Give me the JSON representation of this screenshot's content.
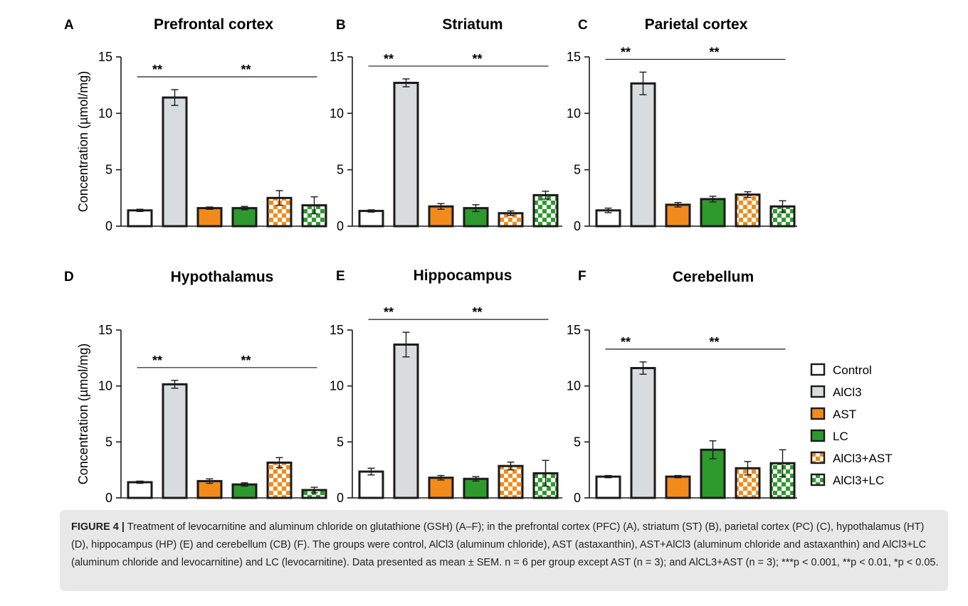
{
  "figure": {
    "y_axis_label": "Concentration (µmol/mg)",
    "y_ticks": [
      "0",
      "5",
      "10",
      "15"
    ],
    "significance": "**"
  },
  "legend": [
    {
      "label": "Control",
      "pattern": "white"
    },
    {
      "label": "AlCl3",
      "pattern": "grey"
    },
    {
      "label": "AST",
      "pattern": "orange"
    },
    {
      "label": "LC",
      "pattern": "green"
    },
    {
      "label": "AlCl3+AST",
      "pattern": "orange-check"
    },
    {
      "label": "AlCl3+LC",
      "pattern": "green-check"
    }
  ],
  "colors": {
    "control": "#ffffff",
    "alcl3": "#d9dcdc",
    "ast": "#f28a1c",
    "lc": "#2e9a2e",
    "axis": "#1a1a1a",
    "caption_bg": "#e8e8e8"
  },
  "chart_data": [
    {
      "type": "bar",
      "letter": "A",
      "title": "Prefrontal cortex",
      "categories": [
        "Control",
        "AlCl3",
        "AST",
        "LC",
        "AlCl3+AST",
        "AlCl3+LC"
      ],
      "values": [
        1.4,
        11.4,
        1.6,
        1.6,
        2.5,
        1.85
      ],
      "errors": [
        0.1,
        0.7,
        0.1,
        0.15,
        0.65,
        0.75
      ],
      "ylim": [
        0,
        15
      ],
      "ylabel": "Concentration (µmol/mg)",
      "yticks": [
        0,
        5,
        10,
        15
      ]
    },
    {
      "type": "bar",
      "letter": "B",
      "title": "Striatum",
      "categories": [
        "Control",
        "AlCl3",
        "AST",
        "LC",
        "AlCl3+AST",
        "AlCl3+LC"
      ],
      "values": [
        1.35,
        12.7,
        1.75,
        1.6,
        1.15,
        2.75
      ],
      "errors": [
        0.1,
        0.35,
        0.25,
        0.3,
        0.2,
        0.35
      ],
      "ylim": [
        0,
        15
      ],
      "yticks": [
        0,
        5,
        10,
        15
      ]
    },
    {
      "type": "bar",
      "letter": "C",
      "title": "Parietal cortex",
      "categories": [
        "Control",
        "AlCl3",
        "AST",
        "LC",
        "AlCl3+AST",
        "AlCl3+LC"
      ],
      "values": [
        1.4,
        12.65,
        1.9,
        2.4,
        2.8,
        1.75
      ],
      "errors": [
        0.2,
        1.0,
        0.2,
        0.25,
        0.25,
        0.5
      ],
      "ylim": [
        0,
        15
      ],
      "yticks": [
        0,
        5,
        10,
        15
      ]
    },
    {
      "type": "bar",
      "letter": "D",
      "title": "Hypothalamus",
      "categories": [
        "Control",
        "AlCl3",
        "AST",
        "LC",
        "AlCl3+AST",
        "AlCl3+LC"
      ],
      "values": [
        1.4,
        10.15,
        1.5,
        1.2,
        3.15,
        0.7
      ],
      "errors": [
        0.1,
        0.35,
        0.2,
        0.15,
        0.45,
        0.25
      ],
      "ylim": [
        0,
        15
      ],
      "ylabel": "Concentration (µmol/mg)",
      "yticks": [
        0,
        5,
        10,
        15
      ]
    },
    {
      "type": "bar",
      "letter": "E",
      "title": "Hippocampus",
      "categories": [
        "Control",
        "AlCl3",
        "AST",
        "LC",
        "AlCl3+AST",
        "AlCl3+LC"
      ],
      "values": [
        2.35,
        13.7,
        1.8,
        1.7,
        2.85,
        2.2
      ],
      "errors": [
        0.3,
        1.1,
        0.2,
        0.2,
        0.35,
        1.15
      ],
      "ylim": [
        0,
        15
      ],
      "yticks": [
        0,
        5,
        10,
        15
      ]
    },
    {
      "type": "bar",
      "letter": "F",
      "title": "Cerebellum",
      "categories": [
        "Control",
        "AlCl3",
        "AST",
        "LC",
        "AlCl3+AST",
        "AlCl3+LC"
      ],
      "values": [
        1.9,
        11.6,
        1.9,
        4.3,
        2.65,
        3.1
      ],
      "errors": [
        0.1,
        0.55,
        0.1,
        0.8,
        0.6,
        1.2
      ],
      "ylim": [
        0,
        15
      ],
      "yticks": [
        0,
        5,
        10,
        15
      ]
    }
  ],
  "caption": {
    "label": "FIGURE 4 |",
    "text": "Treatment of levocarnitine and aluminum chloride on glutathione (GSH) (A–F); in the prefrontal cortex (PFC) (A), striatum (ST) (B), parietal cortex (PC) (C), hypothalamus (HT) (D), hippocampus (HP) (E) and cerebellum (CB) (F). The groups were control, AlCl3 (aluminum chloride), AST (astaxanthin), AST+AlCl3 (aluminum chloride and astaxanthin) and AlCl3+LC (aluminum chloride and levocarnitine) and LC (levocarnitine). Data presented as mean ± SEM. n = 6 per group except AST (n = 3); and AlCL3+AST (n = 3); ***p < 0.001, **p < 0.01, *p < 0.05."
  }
}
